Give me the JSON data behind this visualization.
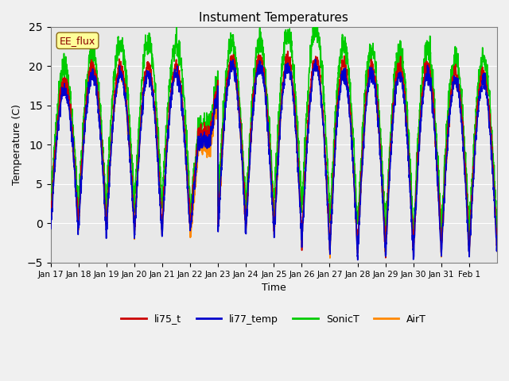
{
  "title": "Instument Temperatures",
  "xlabel": "Time",
  "ylabel": "Temperature (C)",
  "ylim": [
    -5,
    25
  ],
  "annotation": "EE_flux",
  "colors": {
    "li75_t": "#cc0000",
    "li77_temp": "#0000cc",
    "SonicT": "#00cc00",
    "AirT": "#ff8800"
  },
  "legend_labels": [
    "li75_t",
    "li77_temp",
    "SonicT",
    "AirT"
  ],
  "xtick_labels": [
    "Jan 17",
    "Jan 18",
    "Jan 19",
    "Jan 20",
    "Jan 21",
    "Jan 22",
    "Jan 23",
    "Jan 24",
    "Jan 25",
    "Jan 26",
    "Jan 27",
    "Jan 28",
    "Jan 29",
    "Jan 30",
    "Jan 31",
    "Feb 1"
  ],
  "bg_color": "#e8e8e8",
  "fig_color": "#f0f0f0",
  "linewidth": 1.2
}
